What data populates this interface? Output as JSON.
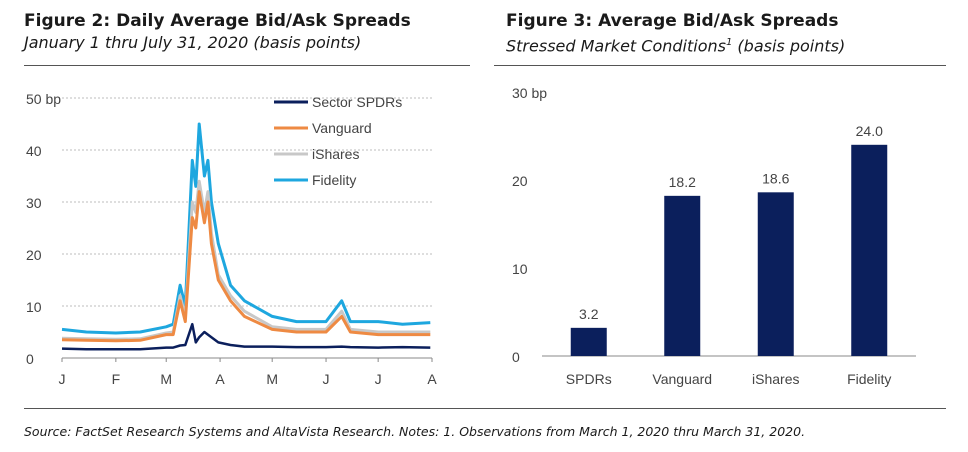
{
  "figure2": {
    "title": "Figure 2: Daily Average Bid/Ask Spreads",
    "subtitle": "January 1 thru July 31, 2020 (basis points)"
  },
  "figure3": {
    "title": "Figure 3: Average Bid/Ask Spreads",
    "subtitle_main": "Stressed Market Conditions",
    "subtitle_sup": "1",
    "subtitle_tail": " (basis points)"
  },
  "source_note": "Source: FactSet Research Systems and AltaVista Research. Notes: 1. Observations from March 1, 2020 thru March 31, 2020.",
  "colors": {
    "Sector SPDRs": "#0b1f5c",
    "Vanguard": "#ee8a43",
    "iShares": "#c8c8c8",
    "Fidelity": "#1ea7df",
    "bar": "#0b1f5c"
  },
  "chart_data": [
    {
      "type": "line",
      "ylim": [
        0,
        50
      ],
      "yticks": [
        0,
        10,
        20,
        30,
        40,
        50
      ],
      "ytick_labels": [
        "0",
        "10",
        "20",
        "30",
        "40",
        "50 bp"
      ],
      "xtick_labels": [
        "J",
        "F",
        "M",
        "A",
        "M",
        "J",
        "J",
        "A"
      ],
      "grid": true,
      "legend": "top-right",
      "x": [
        "Jan 1",
        "Jan 15",
        "Feb 1",
        "Feb 15",
        "Mar 1",
        "Mar 5",
        "Mar 9",
        "Mar 12",
        "Mar 16",
        "Mar 18",
        "Mar 20",
        "Mar 23",
        "Mar 25",
        "Mar 27",
        "Mar 31",
        "Apr 7",
        "Apr 15",
        "May 1",
        "May 15",
        "Jun 1",
        "Jun 10",
        "Jun 15",
        "Jul 1",
        "Jul 15",
        "Jul 31"
      ],
      "series": [
        {
          "name": "Sector SPDRs",
          "values": [
            1.8,
            1.7,
            1.7,
            1.7,
            2.0,
            2.0,
            2.4,
            2.5,
            6.5,
            3.0,
            4.0,
            5.0,
            4.5,
            4.0,
            3.0,
            2.5,
            2.2,
            2.2,
            2.1,
            2.1,
            2.2,
            2.1,
            2.0,
            2.1,
            2.0
          ]
        },
        {
          "name": "Vanguard",
          "values": [
            3.5,
            3.4,
            3.3,
            3.4,
            4.5,
            4.5,
            11.0,
            7.0,
            27.0,
            25.0,
            32.0,
            26.0,
            30.0,
            22.0,
            15.0,
            11.0,
            8.0,
            5.5,
            5.0,
            5.0,
            8.0,
            5.0,
            4.5,
            4.5,
            4.5
          ]
        },
        {
          "name": "iShares",
          "values": [
            3.8,
            3.7,
            3.6,
            3.7,
            4.8,
            5.0,
            12.0,
            8.0,
            30.0,
            28.0,
            34.0,
            28.0,
            32.0,
            24.0,
            16.0,
            12.0,
            9.0,
            6.0,
            5.5,
            5.5,
            9.0,
            5.5,
            5.0,
            5.0,
            5.0
          ]
        },
        {
          "name": "Fidelity",
          "values": [
            5.5,
            5.0,
            4.8,
            5.0,
            6.0,
            6.5,
            14.0,
            10.0,
            38.0,
            33.0,
            45.0,
            35.0,
            38.0,
            30.0,
            22.0,
            14.0,
            11.0,
            8.0,
            7.0,
            7.0,
            11.0,
            7.0,
            7.0,
            6.5,
            6.8
          ]
        }
      ]
    },
    {
      "type": "bar",
      "categories": [
        "SPDRs",
        "Vanguard",
        "iShares",
        "Fidelity"
      ],
      "values": [
        3.2,
        18.2,
        18.6,
        24.0
      ],
      "data_labels": [
        "3.2",
        "18.2",
        "18.6",
        "24.0"
      ],
      "ylim": [
        0,
        30
      ],
      "yticks": [
        0,
        10,
        20,
        30
      ],
      "ytick_labels": [
        "0",
        "10",
        "20",
        "30 bp"
      ],
      "grid": false
    }
  ]
}
